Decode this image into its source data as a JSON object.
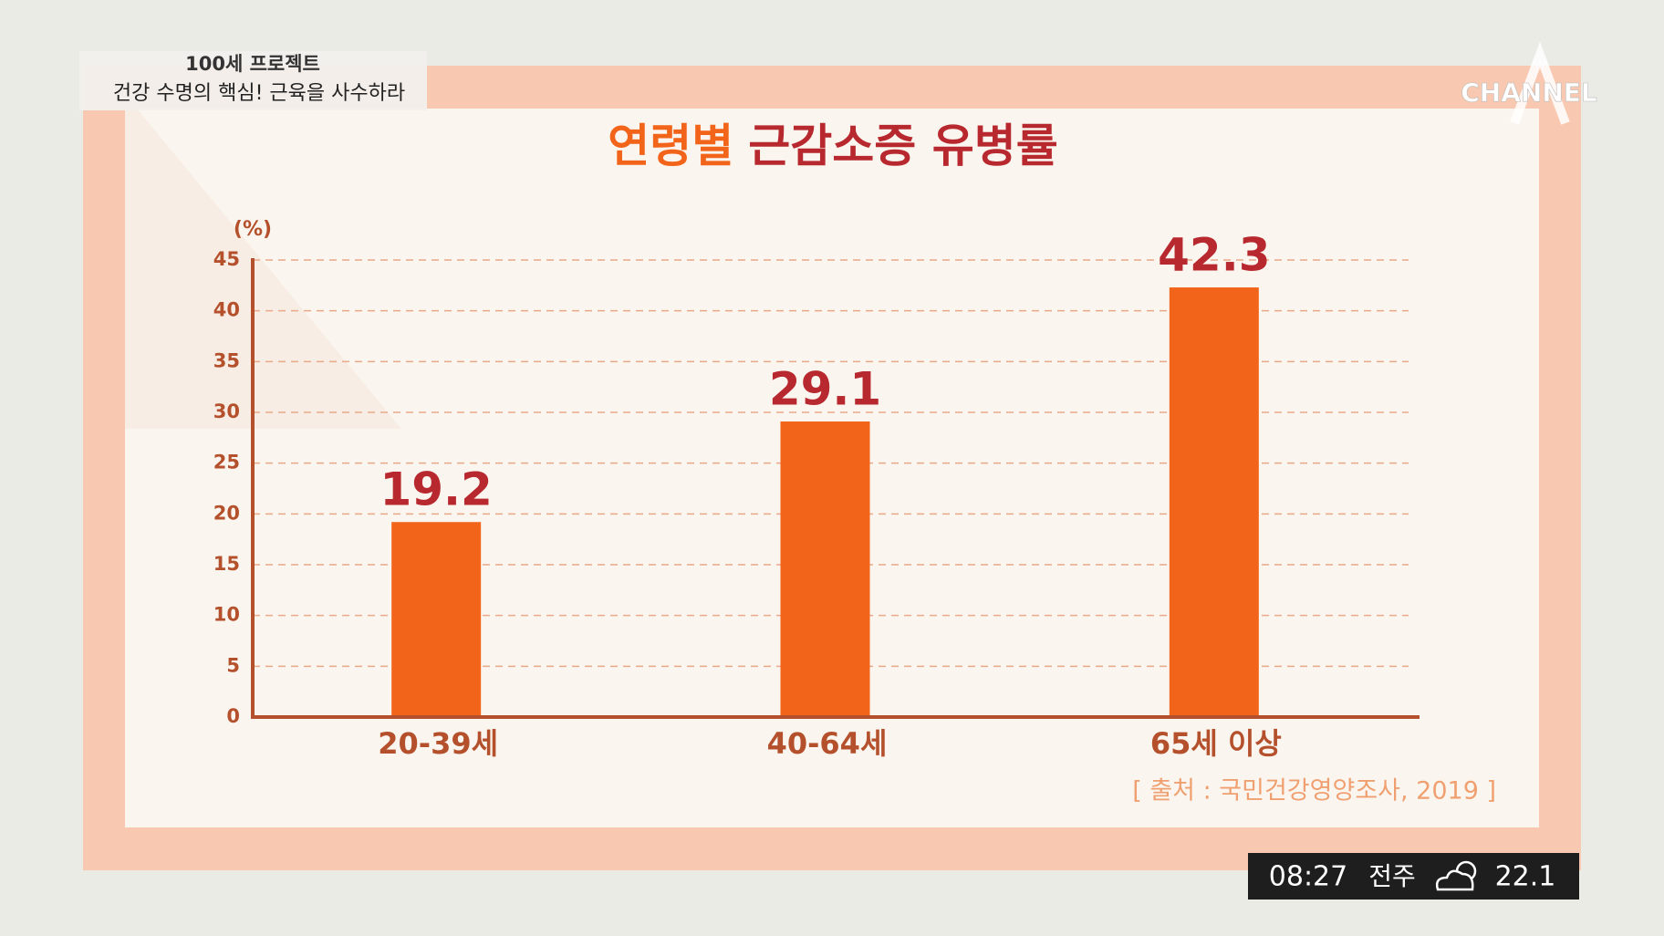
{
  "header": {
    "program": "100세 프로젝트",
    "headline": "건강 수명의 핵심! 근육을 사수하라"
  },
  "logo": "CHANNEL",
  "status": {
    "time": "08:27",
    "city": "전주",
    "temperature": "22.1"
  },
  "chart_data": {
    "type": "bar",
    "title": {
      "highlight": "연령별",
      "rest": "근감소증 유병률"
    },
    "y_label": "(%)",
    "categories": [
      "20-39세",
      "40-64세",
      "65세 이상"
    ],
    "values": [
      19.2,
      29.1,
      42.3
    ],
    "color": "#f26419",
    "ylim": [
      0,
      45
    ],
    "yticks": [
      0,
      5,
      10,
      15,
      20,
      25,
      30,
      35,
      40,
      45
    ],
    "grid": true,
    "source": "[ 출처 : 국민건강영양조사, 2019 ]"
  }
}
